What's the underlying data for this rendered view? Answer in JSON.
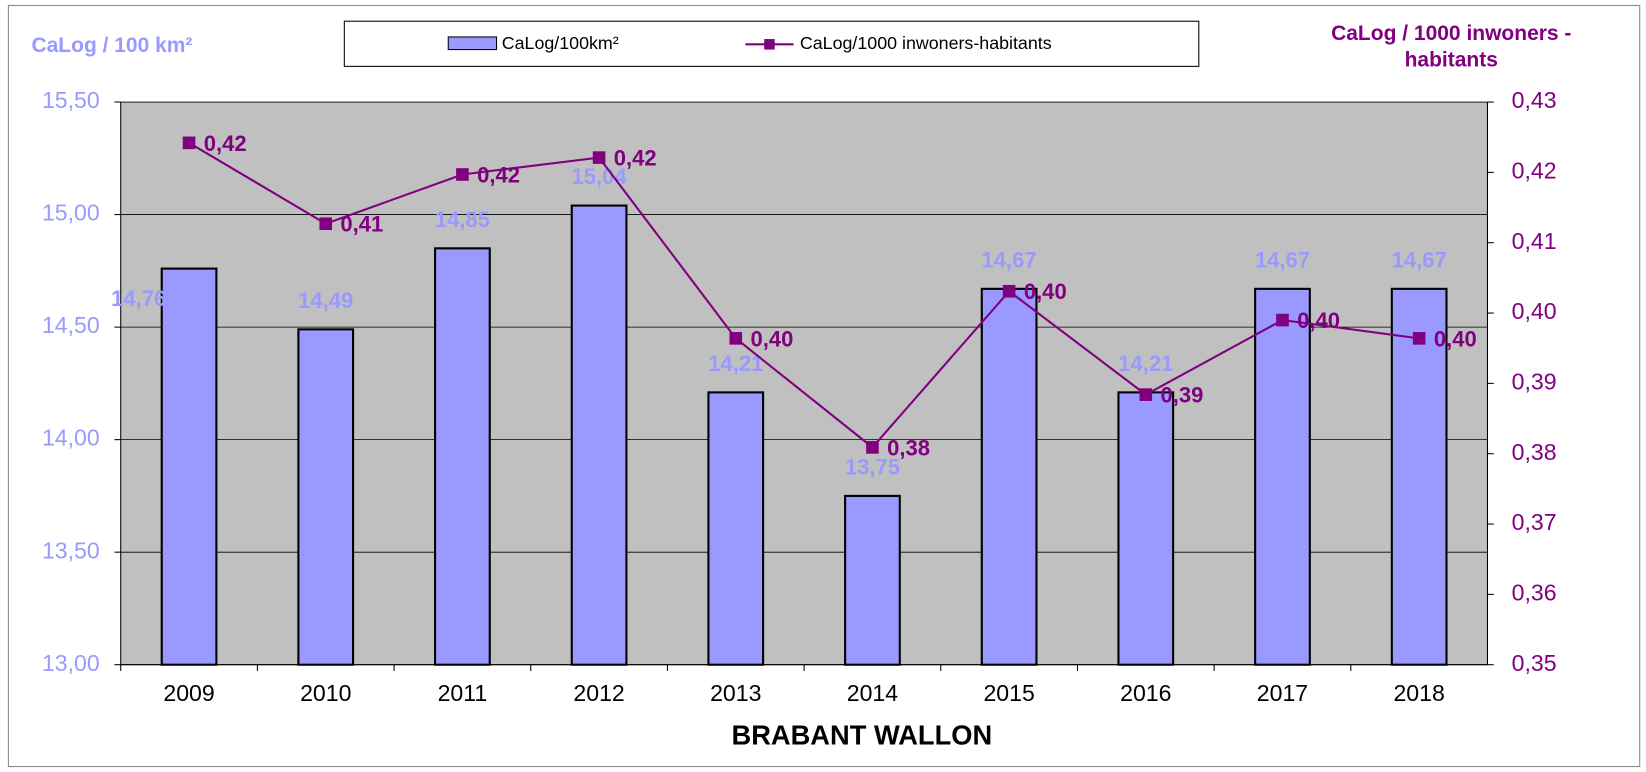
{
  "chart_data": {
    "type": "bar",
    "xlabel": "BRABANT WALLON",
    "ylabel": "CaLog / 100 km²",
    "y2label": "CaLog / 1000 inwoners - habitants",
    "categories": [
      "2009",
      "2010",
      "2011",
      "2012",
      "2013",
      "2014",
      "2015",
      "2016",
      "2017",
      "2018"
    ],
    "series": [
      {
        "name": "CaLog/100km²",
        "type": "bar",
        "color": "#9999ff",
        "values": [
          14.76,
          14.49,
          14.85,
          15.04,
          14.21,
          13.75,
          14.67,
          14.21,
          14.67,
          14.67
        ],
        "value_labels": [
          "14,76",
          "14,49",
          "14,85",
          "15,04",
          "14,21",
          "13,75",
          "14,67",
          "14,21",
          "14,67",
          "14,67"
        ]
      },
      {
        "name": "CaLog/1000 inwoners-habitants",
        "type": "line",
        "axis": "y2",
        "color": "#800080",
        "values": [
          0.4242,
          0.4127,
          0.4197,
          0.4221,
          0.3964,
          0.3809,
          0.4031,
          0.3884,
          0.399,
          0.3964
        ],
        "value_labels": [
          "0,42",
          "0,41",
          "0,42",
          "0,42",
          "0,40",
          "0,38",
          "0,40",
          "0,39",
          "0,40",
          "0,40"
        ]
      }
    ],
    "ylim": [
      13,
      15.5
    ],
    "yticks": [
      {
        "value": 13,
        "label": "13,00"
      },
      {
        "value": 13.5,
        "label": "13,50"
      },
      {
        "value": 14,
        "label": "14,00"
      },
      {
        "value": 14.5,
        "label": "14,50"
      },
      {
        "value": 15,
        "label": "15,00"
      },
      {
        "value": 15.5,
        "label": "15,50"
      }
    ],
    "y2lim": [
      0.35,
      0.43
    ],
    "y2ticks": [
      {
        "value": 0.35,
        "label": "0,35"
      },
      {
        "value": 0.36,
        "label": "0,36"
      },
      {
        "value": 0.37,
        "label": "0,37"
      },
      {
        "value": 0.38,
        "label": "0,38"
      },
      {
        "value": 0.39,
        "label": "0,39"
      },
      {
        "value": 0.4,
        "label": "0,40"
      },
      {
        "value": 0.41,
        "label": "0,41"
      },
      {
        "value": 0.42,
        "label": "0,42"
      },
      {
        "value": 0.43,
        "label": "0,43"
      }
    ],
    "grid": true,
    "legend": "top"
  }
}
